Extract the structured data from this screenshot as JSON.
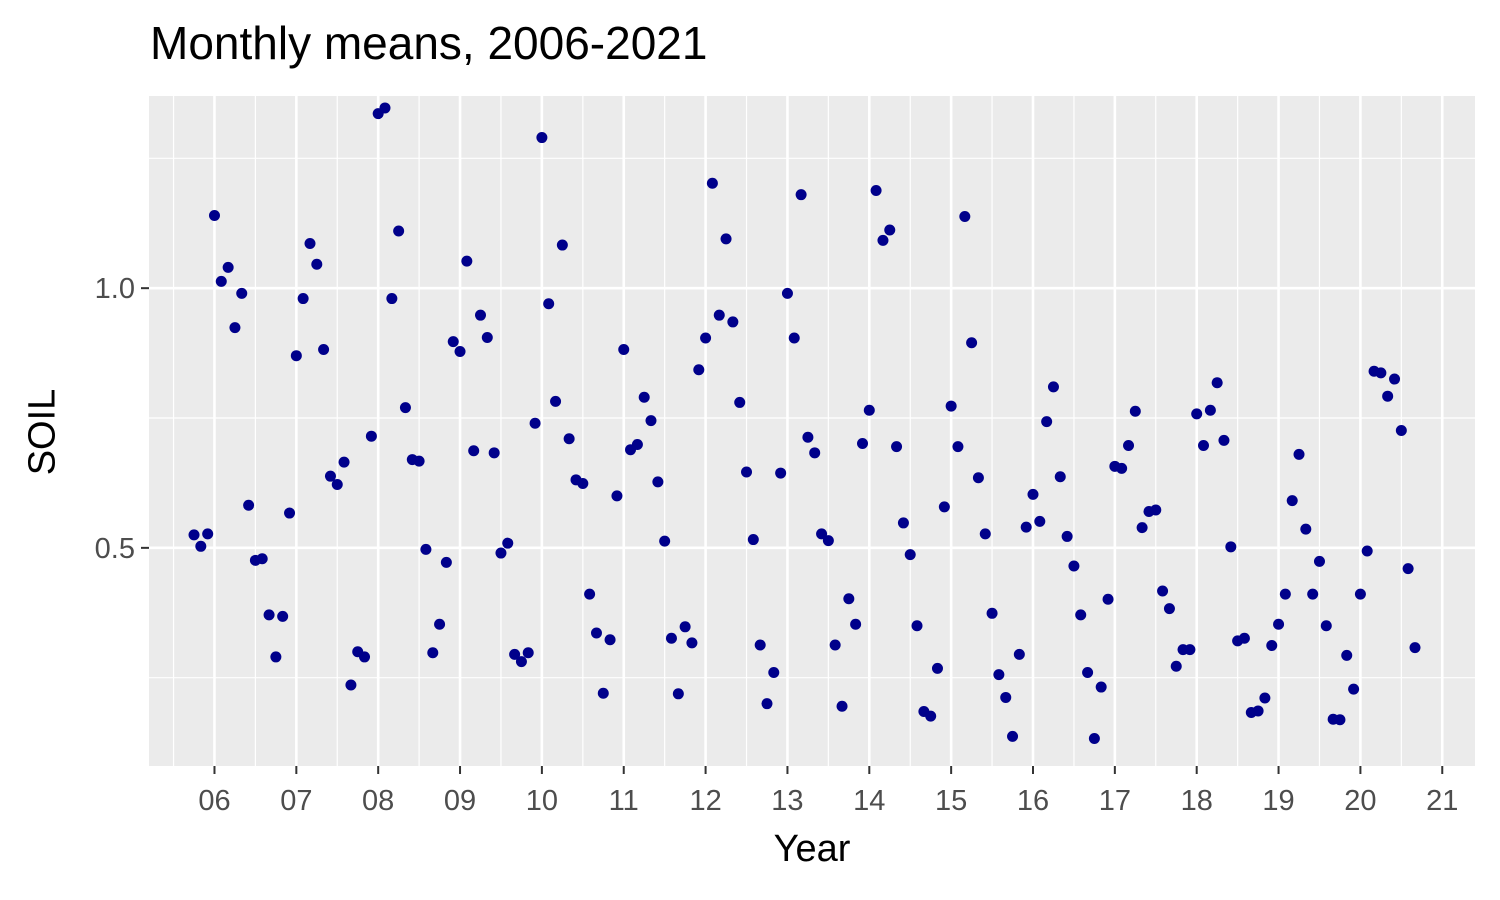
{
  "chart_data": {
    "type": "scatter",
    "title": "Monthly means, 2006-2021",
    "xlabel": "Year",
    "ylabel": "SOIL",
    "xlim": [
      2005.2,
      2021.4
    ],
    "ylim": [
      0.08,
      1.37
    ],
    "x_ticks": [
      2006,
      2007,
      2008,
      2009,
      2010,
      2011,
      2012,
      2013,
      2014,
      2015,
      2016,
      2017,
      2018,
      2019,
      2020,
      2021
    ],
    "x_tick_labels": [
      "06",
      "07",
      "08",
      "09",
      "10",
      "11",
      "12",
      "13",
      "14",
      "15",
      "16",
      "17",
      "18",
      "19",
      "20",
      "21"
    ],
    "y_ticks": [
      0.5,
      1.0
    ],
    "y_tick_labels": [
      "0.5",
      "1.0"
    ],
    "grid": true,
    "point_color": "#00008b",
    "panel_background": "#ebebeb",
    "series": [
      {
        "x": [
          2005.75,
          2005.833,
          2005.917,
          2006.0,
          2006.083,
          2006.167,
          2006.25,
          2006.333,
          2006.417,
          2006.5,
          2006.583,
          2006.667,
          2006.75,
          2006.833,
          2006.917,
          2007.0,
          2007.083,
          2007.167,
          2007.25,
          2007.333,
          2007.417,
          2007.5,
          2007.583,
          2007.667,
          2007.75,
          2007.833,
          2007.917,
          2008.0,
          2008.083,
          2008.167,
          2008.25,
          2008.333,
          2008.417,
          2008.5,
          2008.583,
          2008.667,
          2008.75,
          2008.833,
          2008.917,
          2009.0,
          2009.083,
          2009.167,
          2009.25,
          2009.333,
          2009.417,
          2009.5,
          2009.583,
          2009.667,
          2009.75,
          2009.833,
          2009.917,
          2010.0,
          2010.083,
          2010.167,
          2010.25,
          2010.333,
          2010.417,
          2010.5,
          2010.583,
          2010.667,
          2010.75,
          2010.833,
          2010.917,
          2011.0,
          2011.083,
          2011.167,
          2011.25,
          2011.333,
          2011.417,
          2011.5,
          2011.583,
          2011.667,
          2011.75,
          2011.833,
          2011.917,
          2012.0,
          2012.083,
          2012.167,
          2012.25,
          2012.333,
          2012.417,
          2012.5,
          2012.583,
          2012.667,
          2012.75,
          2012.833,
          2012.917,
          2013.0,
          2013.083,
          2013.167,
          2013.25,
          2013.333,
          2013.417,
          2013.5,
          2013.583,
          2013.667,
          2013.75,
          2013.833,
          2013.917,
          2014.0,
          2014.083,
          2014.167,
          2014.25,
          2014.333,
          2014.417,
          2014.5,
          2014.583,
          2014.667,
          2014.75,
          2014.833,
          2014.917,
          2015.0,
          2015.083,
          2015.167,
          2015.25,
          2015.333,
          2015.417,
          2015.5,
          2015.583,
          2015.667,
          2015.75,
          2015.833,
          2015.917,
          2016.0,
          2016.083,
          2016.167,
          2016.25,
          2016.333,
          2016.417,
          2016.5,
          2016.583,
          2016.667,
          2016.75,
          2016.833,
          2016.917,
          2017.0,
          2017.083,
          2017.167,
          2017.25,
          2017.333,
          2017.417,
          2017.5,
          2017.583,
          2017.667,
          2017.75,
          2017.833,
          2017.917,
          2018.0,
          2018.083,
          2018.167,
          2018.25,
          2018.333,
          2018.417,
          2018.5,
          2018.583,
          2018.667,
          2018.75,
          2018.833,
          2018.917,
          2019.0,
          2019.083,
          2019.167,
          2019.25,
          2019.333,
          2019.417,
          2019.5,
          2019.583,
          2019.667,
          2019.75,
          2019.833,
          2019.917,
          2020.0,
          2020.083,
          2020.167,
          2020.25,
          2020.333,
          2020.417,
          2020.5,
          2020.583,
          2020.667
        ],
        "y": [
          0.525,
          0.503,
          0.527,
          1.14,
          1.013,
          1.04,
          0.924,
          0.99,
          0.582,
          0.476,
          0.479,
          0.371,
          0.29,
          0.368,
          0.567,
          0.87,
          0.98,
          1.086,
          1.046,
          0.882,
          0.638,
          0.622,
          0.665,
          0.236,
          0.3,
          0.29,
          0.715,
          1.336,
          1.347,
          0.98,
          1.11,
          0.77,
          0.67,
          0.667,
          0.497,
          0.298,
          0.353,
          0.472,
          0.897,
          0.878,
          1.052,
          0.687,
          0.948,
          0.905,
          0.683,
          0.49,
          0.509,
          0.295,
          0.281,
          0.298,
          0.74,
          1.29,
          0.97,
          0.782,
          1.083,
          0.71,
          0.631,
          0.624,
          0.411,
          0.336,
          0.22,
          0.323,
          0.6,
          0.882,
          0.689,
          0.699,
          0.79,
          0.745,
          0.627,
          0.513,
          0.326,
          0.219,
          0.348,
          0.317,
          0.843,
          0.904,
          1.202,
          0.948,
          1.095,
          0.935,
          0.78,
          0.646,
          0.516,
          0.313,
          0.2,
          0.26,
          0.644,
          0.99,
          0.904,
          1.18,
          0.713,
          0.683,
          0.527,
          0.514,
          0.313,
          0.195,
          0.402,
          0.353,
          0.701,
          0.765,
          1.188,
          1.092,
          1.112,
          0.695,
          0.548,
          0.487,
          0.35,
          0.185,
          0.176,
          0.268,
          0.579,
          0.773,
          0.695,
          1.138,
          0.895,
          0.635,
          0.527,
          0.374,
          0.256,
          0.212,
          0.137,
          0.295,
          0.54,
          0.603,
          0.551,
          0.743,
          0.81,
          0.637,
          0.522,
          0.465,
          0.371,
          0.26,
          0.133,
          0.232,
          0.401,
          0.657,
          0.653,
          0.697,
          0.763,
          0.539,
          0.57,
          0.573,
          0.417,
          0.383,
          0.272,
          0.304,
          0.304,
          0.758,
          0.697,
          0.765,
          0.818,
          0.707,
          0.502,
          0.321,
          0.326,
          0.183,
          0.186,
          0.211,
          0.312,
          0.353,
          0.411,
          0.591,
          0.68,
          0.536,
          0.411,
          0.474,
          0.35,
          0.17,
          0.169,
          0.293,
          0.228,
          0.411,
          0.494,
          0.84,
          0.837,
          0.792,
          0.825,
          0.726,
          0.46,
          0.308
        ]
      }
    ]
  }
}
